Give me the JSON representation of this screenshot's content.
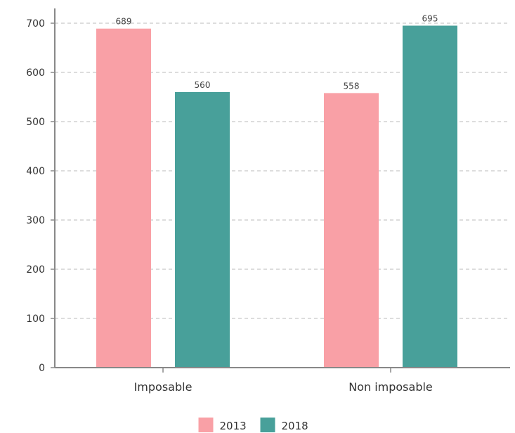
{
  "chart_data": {
    "type": "bar",
    "categories": [
      "Imposable",
      "Non imposable"
    ],
    "series": [
      {
        "name": "2013",
        "values": [
          689,
          558
        ],
        "color": "#f9a0a6"
      },
      {
        "name": "2018",
        "values": [
          560,
          695
        ],
        "color": "#48a09a"
      }
    ],
    "yticks": [
      0,
      100,
      200,
      300,
      400,
      500,
      600,
      700
    ],
    "ylim": [
      0,
      700
    ],
    "grid": true,
    "legend_position": "bottom-center"
  }
}
